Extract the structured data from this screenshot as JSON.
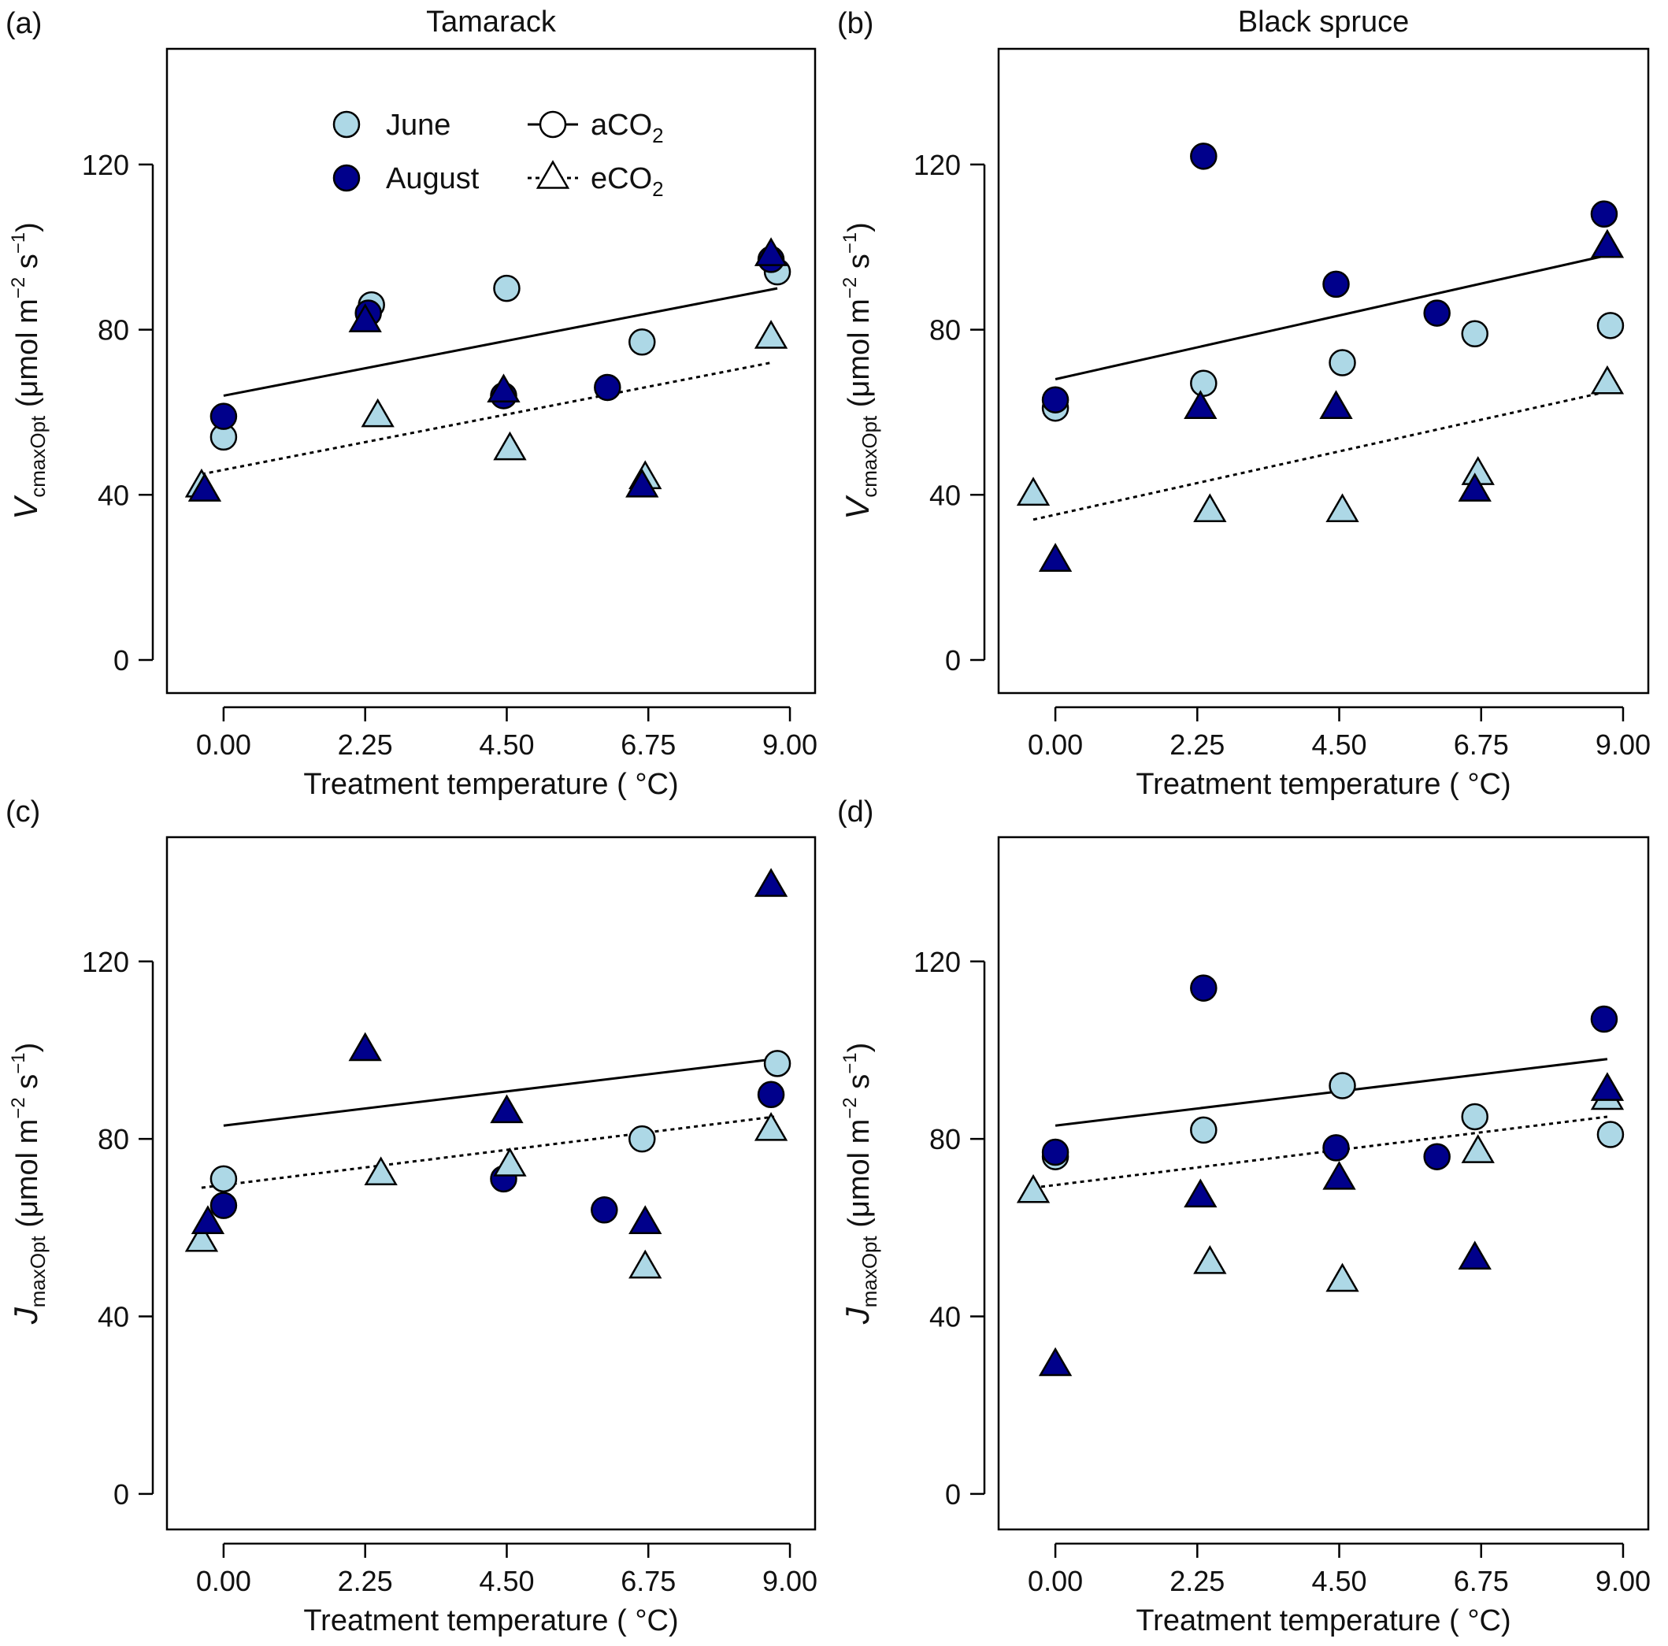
{
  "figure": {
    "legend": {
      "month_entries": [
        {
          "label": "June",
          "color": "#add8e6"
        },
        {
          "label": "August",
          "color": "#00008b"
        }
      ],
      "co2_entries": [
        {
          "label": "aCO",
          "sub": "2",
          "shape": "circle",
          "line": "solid"
        },
        {
          "label": "eCO",
          "sub": "2",
          "shape": "triangle",
          "line": "dotted"
        }
      ],
      "placement": "top-left inside panel (a)"
    },
    "colors": {
      "june": "#add8e6",
      "august": "#00008b",
      "stroke": "#000000",
      "axes": "#000000"
    }
  },
  "chart_data": [
    {
      "type": "scatter",
      "panel_label": "(a)",
      "title": "Tamarack",
      "xlabel": "Treatment temperature ( °C)",
      "ylabel": {
        "main": "V",
        "sub": "cmaxOpt",
        "units_prefix": " (μmol m",
        "units_exp1": "−2",
        "units_mid": " s",
        "units_exp2": "−1",
        "units_suffix": ")"
      },
      "xlim": [
        -0.9,
        9.4
      ],
      "ylim": [
        -8,
        148
      ],
      "xticks": [
        "0.00",
        "2.25",
        "4.50",
        "6.75",
        "9.00"
      ],
      "yticks": [
        "0",
        "40",
        "80",
        "120"
      ],
      "grid": false,
      "series": [
        {
          "name": "June",
          "co2": "aCO2",
          "x": [
            0.0,
            2.35,
            4.5,
            6.65,
            8.8
          ],
          "y": [
            54,
            86,
            90,
            77,
            94
          ]
        },
        {
          "name": "August",
          "co2": "aCO2",
          "x": [
            0.0,
            2.3,
            4.45,
            6.1,
            8.7
          ],
          "y": [
            59,
            84,
            64,
            66,
            97
          ]
        },
        {
          "name": "June",
          "co2": "eCO2",
          "x": [
            -0.35,
            2.45,
            4.55,
            6.7,
            8.7
          ],
          "y": [
            42,
            59,
            51,
            44,
            78
          ]
        },
        {
          "name": "August",
          "co2": "eCO2",
          "x": [
            -0.3,
            2.25,
            4.45,
            6.65,
            8.7
          ],
          "y": [
            41,
            82,
            65,
            42,
            98
          ]
        }
      ],
      "fits": [
        {
          "co2": "aCO2",
          "line": "solid",
          "x": [
            0.0,
            8.8
          ],
          "y": [
            64,
            90
          ]
        },
        {
          "co2": "eCO2",
          "line": "dotted",
          "x": [
            -0.35,
            8.7
          ],
          "y": [
            45,
            72
          ]
        }
      ],
      "show_legend": true
    },
    {
      "type": "scatter",
      "panel_label": "(b)",
      "title": "Black spruce",
      "xlabel": "Treatment temperature ( °C)",
      "ylabel": {
        "main": "V",
        "sub": "cmaxOpt",
        "units_prefix": " (μmol m",
        "units_exp1": "−2",
        "units_mid": " s",
        "units_exp2": "−1",
        "units_suffix": ")"
      },
      "xlim": [
        -0.9,
        9.4
      ],
      "ylim": [
        -8,
        148
      ],
      "xticks": [
        "0.00",
        "2.25",
        "4.50",
        "6.75",
        "9.00"
      ],
      "yticks": [
        "0",
        "40",
        "80",
        "120"
      ],
      "grid": false,
      "series": [
        {
          "name": "June",
          "co2": "aCO2",
          "x": [
            0.0,
            2.35,
            4.55,
            6.65,
            8.8
          ],
          "y": [
            61,
            67,
            72,
            79,
            81
          ]
        },
        {
          "name": "August",
          "co2": "aCO2",
          "x": [
            0.0,
            2.35,
            4.45,
            6.05,
            8.7
          ],
          "y": [
            63,
            122,
            91,
            84,
            108
          ]
        },
        {
          "name": "June",
          "co2": "eCO2",
          "x": [
            -0.35,
            2.45,
            4.55,
            6.7,
            8.75
          ],
          "y": [
            40,
            36,
            36,
            45,
            67
          ]
        },
        {
          "name": "August",
          "co2": "eCO2",
          "x": [
            0.0,
            2.3,
            4.45,
            6.65,
            8.75
          ],
          "y": [
            24,
            61,
            61,
            41,
            100
          ]
        }
      ],
      "fits": [
        {
          "co2": "aCO2",
          "line": "solid",
          "x": [
            0.0,
            8.75
          ],
          "y": [
            68,
            98
          ]
        },
        {
          "co2": "eCO2",
          "line": "dotted",
          "x": [
            -0.35,
            8.75
          ],
          "y": [
            34,
            65
          ]
        }
      ],
      "show_legend": false
    },
    {
      "type": "scatter",
      "panel_label": "(c)",
      "title": "",
      "xlabel": "Treatment temperature ( °C)",
      "ylabel": {
        "main": "J",
        "sub": "maxOpt",
        "units_prefix": " (μmol  m",
        "units_exp1": "−2",
        "units_mid": " s",
        "units_exp2": "−1",
        "units_suffix": ")"
      },
      "xlim": [
        -0.9,
        9.4
      ],
      "ylim": [
        -8,
        148
      ],
      "xticks": [
        "0.00",
        "2.25",
        "4.50",
        "6.75",
        "9.00"
      ],
      "yticks": [
        "0",
        "40",
        "80",
        "120"
      ],
      "grid": false,
      "series": [
        {
          "name": "June",
          "co2": "aCO2",
          "x": [
            0.0,
            6.65,
            8.8
          ],
          "y": [
            71,
            80,
            97
          ]
        },
        {
          "name": "August",
          "co2": "aCO2",
          "x": [
            0.0,
            4.45,
            6.05,
            8.7
          ],
          "y": [
            65,
            71,
            64,
            90
          ]
        },
        {
          "name": "June",
          "co2": "eCO2",
          "x": [
            -0.35,
            2.5,
            4.55,
            6.7,
            8.7
          ],
          "y": [
            57,
            72,
            74,
            51,
            82
          ]
        },
        {
          "name": "August",
          "co2": "eCO2",
          "x": [
            -0.25,
            2.25,
            4.5,
            6.7,
            8.7
          ],
          "y": [
            61,
            100,
            86,
            61,
            137
          ]
        }
      ],
      "fits": [
        {
          "co2": "aCO2",
          "line": "solid",
          "x": [
            0.0,
            8.75
          ],
          "y": [
            83,
            98
          ]
        },
        {
          "co2": "eCO2",
          "line": "dotted",
          "x": [
            -0.35,
            8.75
          ],
          "y": [
            69,
            85
          ]
        }
      ],
      "show_legend": false
    },
    {
      "type": "scatter",
      "panel_label": "(d)",
      "title": "",
      "xlabel": "Treatment temperature ( °C)",
      "ylabel": {
        "main": "J",
        "sub": "maxOpt",
        "units_prefix": " (μmol m",
        "units_exp1": "−2",
        "units_mid": " s",
        "units_exp2": "−1",
        "units_suffix": ")"
      },
      "xlim": [
        -0.9,
        9.4
      ],
      "ylim": [
        -8,
        148
      ],
      "xticks": [
        "0.00",
        "2.25",
        "4.50",
        "6.75",
        "9.00"
      ],
      "yticks": [
        "0",
        "40",
        "80",
        "120"
      ],
      "grid": false,
      "series": [
        {
          "name": "June",
          "co2": "aCO2",
          "x": [
            0.0,
            2.35,
            4.55,
            6.65,
            8.8
          ],
          "y": [
            76,
            82,
            92,
            85,
            81
          ]
        },
        {
          "name": "August",
          "co2": "aCO2",
          "x": [
            0.0,
            2.35,
            4.45,
            6.05,
            8.7
          ],
          "y": [
            77,
            114,
            78,
            76,
            107
          ]
        },
        {
          "name": "June",
          "co2": "eCO2",
          "x": [
            -0.35,
            2.45,
            4.55,
            6.7,
            8.75
          ],
          "y": [
            68,
            52,
            48,
            77,
            89
          ]
        },
        {
          "name": "August",
          "co2": "eCO2",
          "x": [
            0.0,
            2.3,
            4.5,
            6.65,
            8.75
          ],
          "y": [
            29,
            67,
            71,
            53,
            91
          ]
        }
      ],
      "fits": [
        {
          "co2": "aCO2",
          "line": "solid",
          "x": [
            0.0,
            8.75
          ],
          "y": [
            83,
            98
          ]
        },
        {
          "co2": "eCO2",
          "line": "dotted",
          "x": [
            -0.35,
            8.75
          ],
          "y": [
            69,
            85
          ]
        }
      ],
      "show_legend": false
    }
  ]
}
